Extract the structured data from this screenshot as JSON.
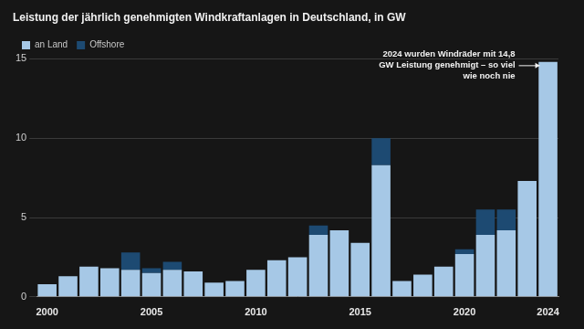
{
  "chart_data": {
    "type": "bar",
    "title": "Leistung der jährlich genehmigten Windkraftanlagen in Deutschland, in GW",
    "categories": [
      "2000",
      null,
      null,
      null,
      null,
      "2005",
      null,
      null,
      null,
      null,
      "2010",
      null,
      null,
      null,
      null,
      "2015",
      null,
      null,
      null,
      null,
      "2020",
      null,
      null,
      null,
      "2024"
    ],
    "series": [
      {
        "name": "an Land",
        "color": "#a6c8e6",
        "values": [
          0.8,
          1.3,
          1.9,
          1.8,
          1.7,
          1.5,
          1.7,
          1.6,
          0.9,
          1.0,
          1.7,
          2.3,
          2.5,
          3.9,
          4.2,
          3.4,
          8.3,
          1.0,
          1.4,
          1.9,
          2.7,
          3.9,
          4.2,
          7.3,
          14.8
        ]
      },
      {
        "name": "Offshore",
        "color": "#1d4a72",
        "values": [
          0,
          0,
          0,
          0,
          1.1,
          0.3,
          0.5,
          0,
          0,
          0,
          0,
          0,
          0,
          0.6,
          0,
          0,
          1.7,
          0,
          0,
          0,
          0.3,
          1.6,
          1.3,
          0,
          0
        ]
      }
    ],
    "stacked": true,
    "ylim": [
      0,
      15
    ],
    "yticks": [
      0,
      5,
      10,
      15
    ],
    "grid": true,
    "legend": "top-left",
    "annotations": [
      {
        "text": [
          "2024 wurden Windräder mit 14,8",
          "GW Leistung genehmigt – so viel",
          "wie noch nie"
        ],
        "x": "2024",
        "y": 14.8
      }
    ]
  }
}
